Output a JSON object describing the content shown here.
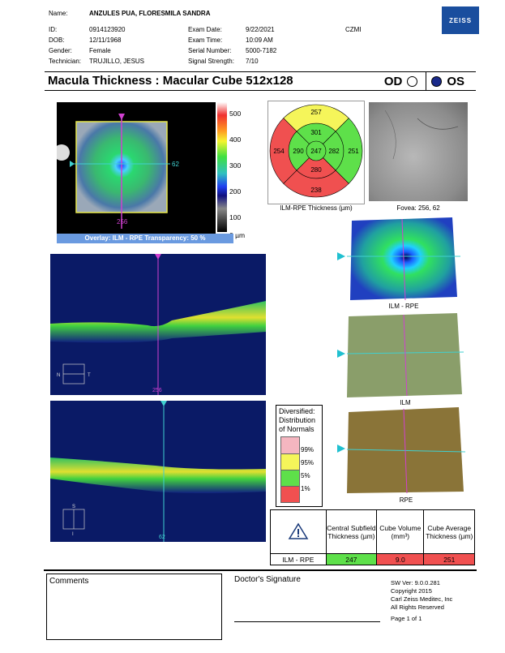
{
  "patient": {
    "name_label": "Name:",
    "name": "ANZULES PUA, FLORESMILA SANDRA",
    "id_label": "ID:",
    "id": "0914123920",
    "dob_label": "DOB:",
    "dob": "12/11/1968",
    "gender_label": "Gender:",
    "gender": "Female",
    "tech_label": "Technician:",
    "technician": "TRUJILLO, JESUS"
  },
  "exam": {
    "date_label": "Exam Date:",
    "date": "9/22/2021",
    "time_label": "Exam Time:",
    "time": "10:09 AM",
    "serial_label": "Serial Number:",
    "serial": "5000-7182",
    "signal_label": "Signal Strength:",
    "signal": "7/10",
    "site": "CZMI"
  },
  "brand": "ZEISS",
  "title": "Macula Thickness : Macular Cube 512x128",
  "eye": {
    "od": "OD",
    "os": "OS",
    "selected": "OS"
  },
  "colorbar": {
    "ticks": [
      "500",
      "400",
      "300",
      "200",
      "100",
      "0 µm"
    ]
  },
  "overlay": {
    "label": "Overlay: ILM - RPE  Transparency: 50 %",
    "v_pos": "256",
    "h_pos": "62"
  },
  "grid": {
    "caption": "ILM-RPE Thickness (µm)",
    "center": "247",
    "inner": {
      "superior": "301",
      "nasal": "290",
      "inferior": "280",
      "temporal": "282"
    },
    "outer": {
      "superior": "257",
      "nasal": "254",
      "inferior": "238",
      "temporal": "251"
    },
    "colors": {
      "green": "#5ee04a",
      "yellow": "#f5f55a",
      "red": "#f05050"
    }
  },
  "fundus": {
    "caption": "Fovea: 256, 62"
  },
  "bscan1": {
    "label": "256",
    "n": "N",
    "t": "T"
  },
  "bscan2": {
    "label": "62",
    "s": "S",
    "i": "I"
  },
  "maps3d": {
    "ilm_rpe": "ILM - RPE",
    "ilm": "ILM",
    "rpe": "RPE"
  },
  "legend": {
    "title": [
      "Diversified:",
      "Distribution",
      "of Normals"
    ],
    "items": [
      {
        "label": "99%",
        "color": "#f5b6c0"
      },
      {
        "label": "95%",
        "color": "#f5f55a"
      },
      {
        "label": "5%",
        "color": "#5ee04a"
      },
      {
        "label": "1%",
        "color": "#f05050"
      }
    ]
  },
  "measurements": {
    "headers": [
      "Central Subfield Thickness (µm)",
      "Cube Volume (mm³)",
      "Cube Average Thickness (µm)"
    ],
    "row_label": "ILM - RPE",
    "values": [
      "247",
      "9.0",
      "251"
    ]
  },
  "footer": {
    "comments": "Comments",
    "signature": "Doctor's Signature",
    "sw": "SW Ver: 9.0.0.281",
    "copyright": "Copyright 2015",
    "company": "Carl Zeiss Meditec, Inc",
    "rights": "All Rights Reserved",
    "page": "Page 1 of 1"
  }
}
